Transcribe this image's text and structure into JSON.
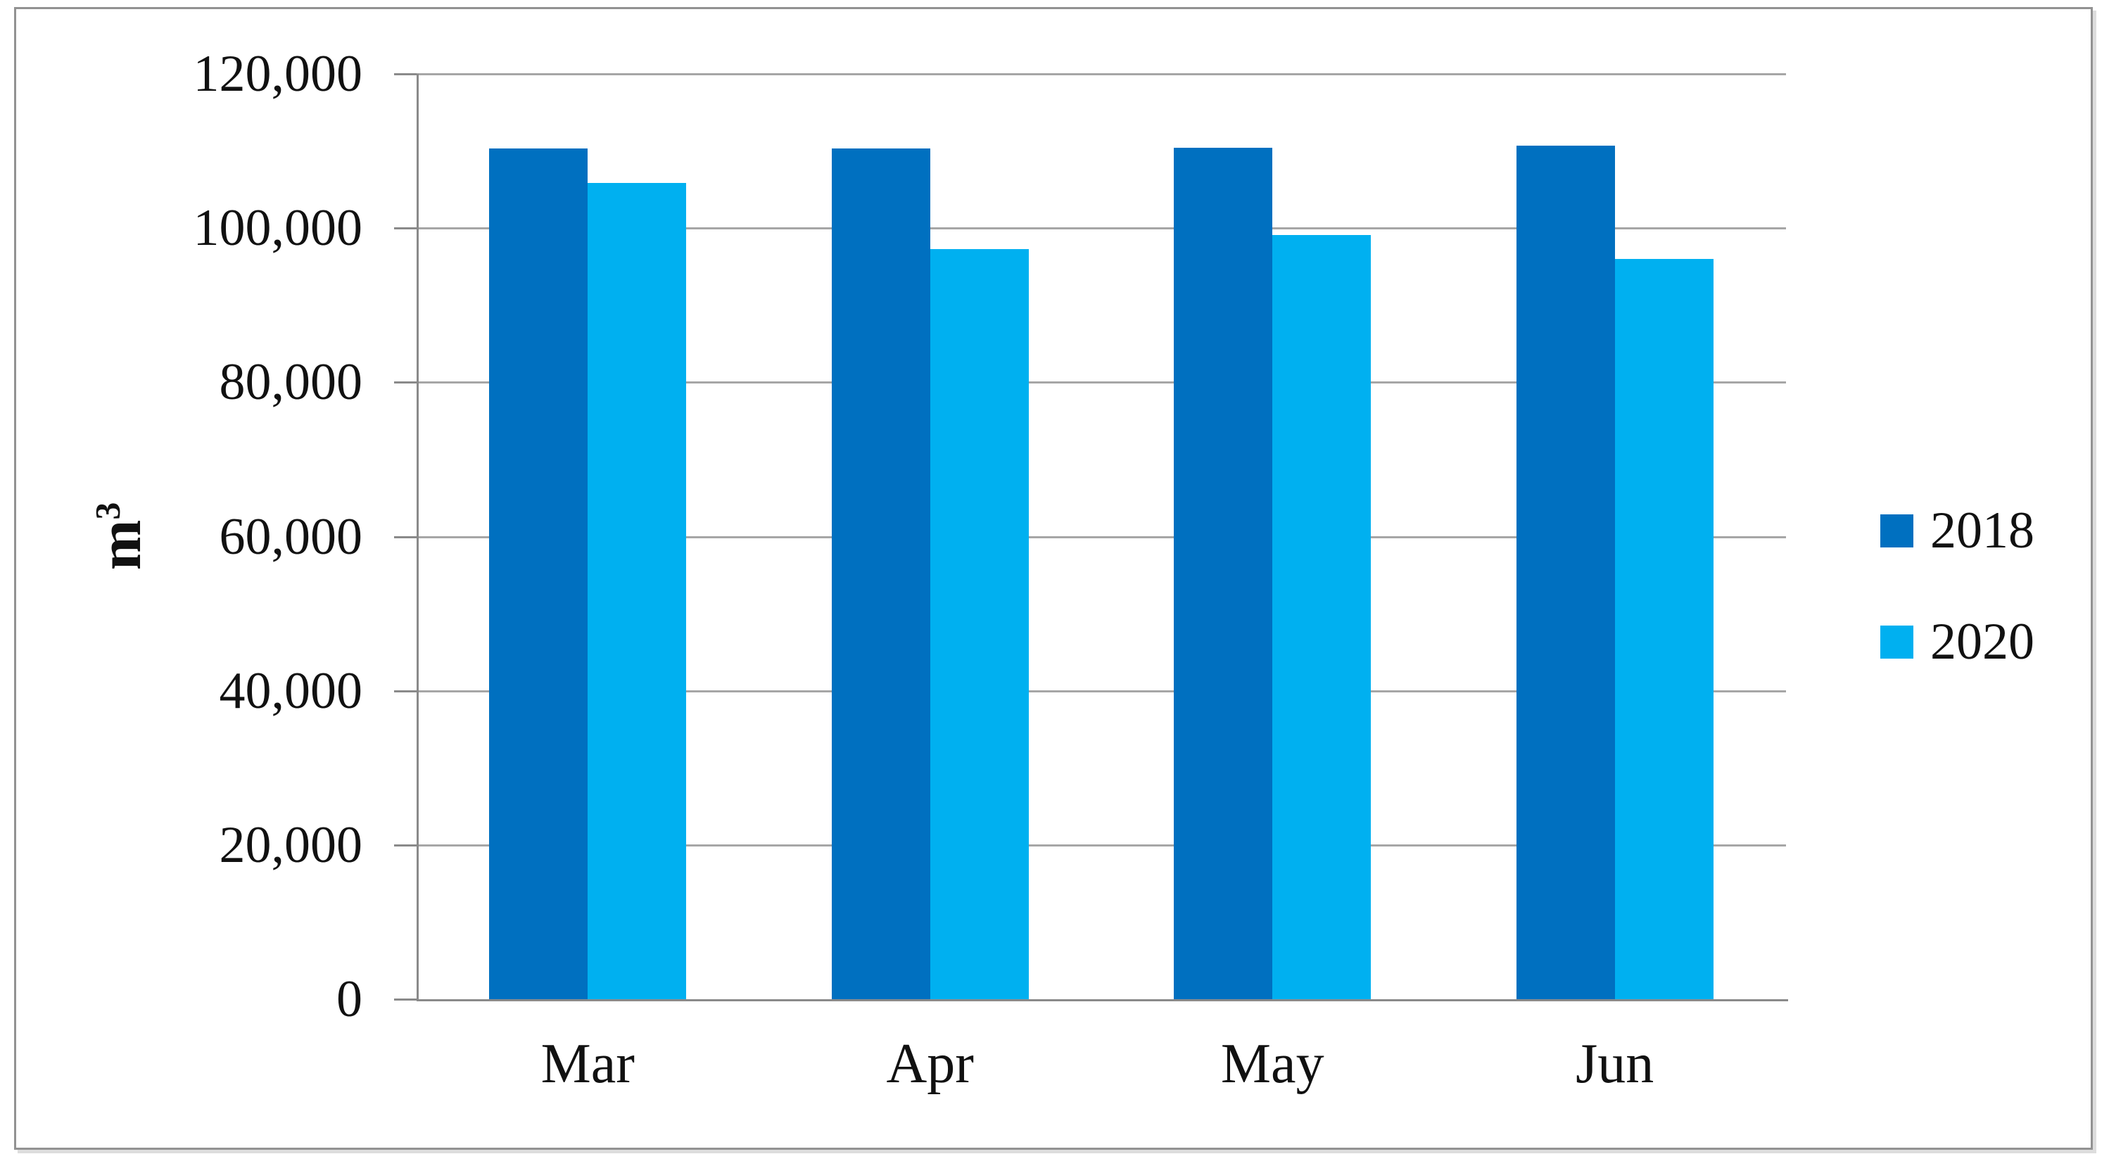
{
  "chart_data": {
    "type": "bar",
    "title": "",
    "ylabel": "m³",
    "ylabel_base": "m",
    "ylabel_sup": "3",
    "categories": [
      "Mar",
      "Apr",
      "May",
      "Jun"
    ],
    "series": [
      {
        "name": "2018",
        "color": "#0070C0",
        "values": [
          110300,
          110300,
          110400,
          110700
        ]
      },
      {
        "name": "2020",
        "color": "#00B0F0",
        "values": [
          105900,
          97300,
          99100,
          96000
        ]
      }
    ],
    "ylim": [
      0,
      120000
    ],
    "ytick_step": 20000,
    "yticks": [
      {
        "value": 120000,
        "label": "120,000"
      },
      {
        "value": 100000,
        "label": "100,000"
      },
      {
        "value": 80000,
        "label": "80,000"
      },
      {
        "value": 60000,
        "label": "60,000"
      },
      {
        "value": 40000,
        "label": "40,000"
      },
      {
        "value": 20000,
        "label": "20,000"
      },
      {
        "value": 0,
        "label": "0"
      }
    ],
    "grid": true,
    "legend_position": "right",
    "legend_labels": [
      "2018",
      "2020"
    ],
    "colors": {
      "series_2018": "#0070C0",
      "series_2020": "#00B0F0",
      "gridline": "#a6a6a6",
      "axis": "#8a8a8a",
      "figure_border": "#929292",
      "background": "#ffffff",
      "text": "#111111"
    }
  }
}
